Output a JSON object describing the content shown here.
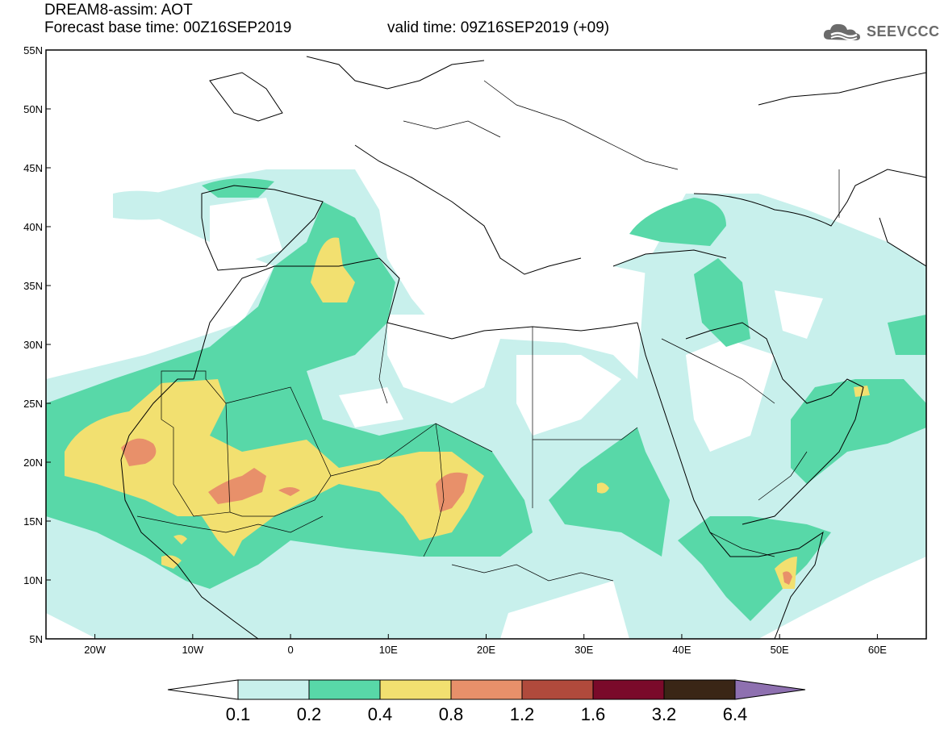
{
  "header": {
    "line1": "DREAM8-assim: AOT",
    "line2": "Forecast base time: 00Z16SEP2019",
    "valid": "valid time: 09Z16SEP2019 (+09)"
  },
  "logo": {
    "text": "SEEVCCC",
    "icon": "cloud-icon"
  },
  "map": {
    "lat_labels": [
      "55N",
      "50N",
      "45N",
      "40N",
      "35N",
      "30N",
      "25N",
      "20N",
      "15N",
      "10N",
      "5N"
    ],
    "lon_labels": [
      "20W",
      "10W",
      "0",
      "10E",
      "20E",
      "30E",
      "40E",
      "50E",
      "60E"
    ],
    "lat_range": [
      5,
      55
    ],
    "lon_range": [
      -25,
      65
    ],
    "projection": "cylindrical equidistant"
  },
  "legend": {
    "labels": [
      "0.1",
      "0.2",
      "0.4",
      "0.8",
      "1.2",
      "1.6",
      "3.2",
      "6.4"
    ],
    "colors": [
      "#c8f0ec",
      "#58d8a8",
      "#f2e070",
      "#e8906a",
      "#b04a3c",
      "#7a0a2a",
      "#3a2616",
      "#8e70b0"
    ],
    "under_color": "#ffffff"
  }
}
